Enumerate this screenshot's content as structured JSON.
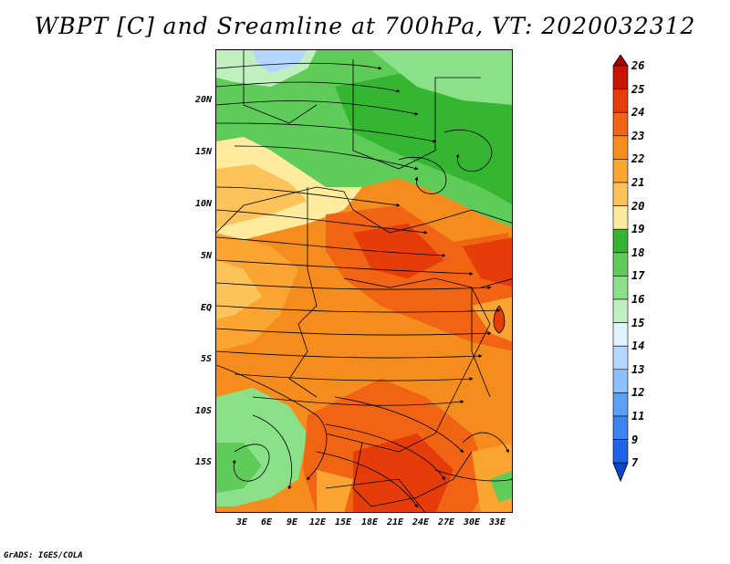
{
  "title": "WBPT [C] and Sreamline at 700hPa, VT: 2020032312",
  "map": {
    "lat_labels": [
      "20N",
      "15N",
      "10N",
      "5N",
      "EQ",
      "5S",
      "10S",
      "15S"
    ],
    "lon_labels": [
      "3E",
      "6E",
      "9E",
      "12E",
      "15E",
      "18E",
      "21E",
      "24E",
      "27E",
      "30E",
      "33E"
    ],
    "field": "wet-bulb potential temperature",
    "overlay": "streamlines"
  },
  "colorbar": {
    "levels": [
      "26",
      "25",
      "24",
      "23",
      "22",
      "21",
      "20",
      "19",
      "18",
      "17",
      "16",
      "15",
      "14",
      "13",
      "12",
      "11",
      "9",
      "7"
    ],
    "colors": [
      "#a50000",
      "#c81400",
      "#e63c0a",
      "#f06414",
      "#f58c1e",
      "#faa532",
      "#fcc35a",
      "#feeb9e",
      "#35b531",
      "#5fcc5a",
      "#8be08a",
      "#c0f0c0",
      "#e0f5ff",
      "#b4d7ff",
      "#8cc0ff",
      "#5aa0f5",
      "#3c82f0",
      "#1e64e6",
      "#0a46c8"
    ]
  },
  "footer": "GrADS: IGES/COLA"
}
